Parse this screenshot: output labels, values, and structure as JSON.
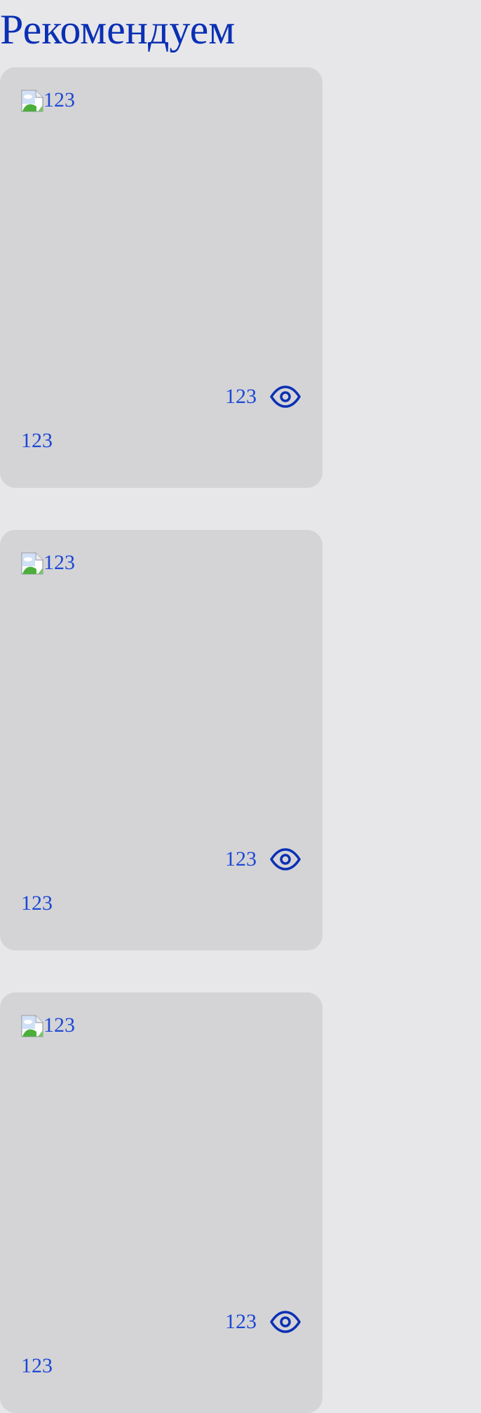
{
  "page": {
    "title": "Рекомендуем"
  },
  "colors": {
    "background": "#e7e7ea",
    "card": "#d4d4d7",
    "title": "#0b30b4",
    "text": "#1e48d3",
    "icon_stroke": "#0b30b4"
  },
  "cards": [
    {
      "image_alt": "123",
      "image_icon": "broken-image-icon",
      "views": "123",
      "views_icon": "eye-icon",
      "caption": "123"
    },
    {
      "image_alt": "123",
      "image_icon": "broken-image-icon",
      "views": "123",
      "views_icon": "eye-icon",
      "caption": "123"
    },
    {
      "image_alt": "123",
      "image_icon": "broken-image-icon",
      "views": "123",
      "views_icon": "eye-icon",
      "caption": "123"
    }
  ]
}
